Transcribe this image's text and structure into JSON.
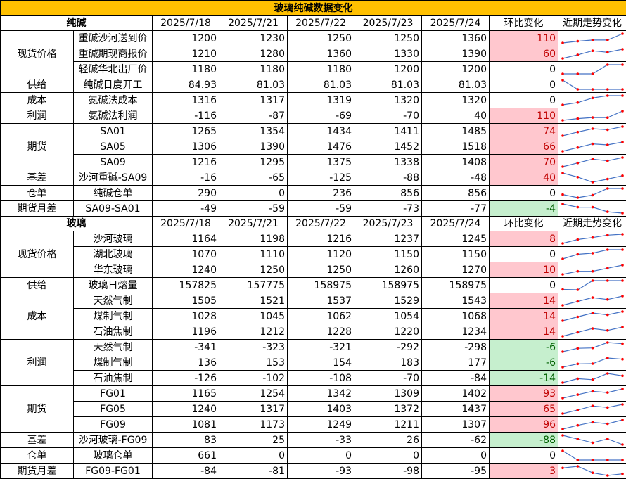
{
  "title": "玻璃纯碱数据变化",
  "colors": {
    "title_bg": "#ffc000",
    "pos_bg": "#ffc7ce",
    "pos_text": "#c00000",
    "neg_bg": "#c6efce",
    "neg_text": "#006100",
    "spark_line": "#4472c4",
    "spark_point": "#ff0000"
  },
  "sections": [
    {
      "name": "纯碱",
      "dates": [
        "2025/7/18",
        "2025/7/21",
        "2025/7/22",
        "2025/7/23",
        "2025/7/24"
      ],
      "change_label": "环比变化",
      "trend_label": "近期走势变化",
      "groups": [
        {
          "category": "现货价格",
          "rows": [
            {
              "item": "重碱沙河送到价",
              "values": [
                "1200",
                "1230",
                "1250",
                "1250",
                "1360"
              ],
              "change": "110"
            },
            {
              "item": "重碱期现商报价",
              "values": [
                "1210",
                "1280",
                "1360",
                "1330",
                "1390"
              ],
              "change": "60"
            },
            {
              "item": "轻碱华北出厂价",
              "values": [
                "1180",
                "1180",
                "1180",
                "1200",
                "1200"
              ],
              "change": "0"
            }
          ]
        },
        {
          "category": "供给",
          "rows": [
            {
              "item": "纯碱日度开工",
              "values": [
                "84.93",
                "81.03",
                "81.03",
                "81.03",
                "81.03"
              ],
              "change": "0"
            }
          ]
        },
        {
          "category": "成本",
          "rows": [
            {
              "item": "氨碱法成本",
              "values": [
                "1316",
                "1317",
                "1319",
                "1320",
                "1320"
              ],
              "change": "0"
            }
          ]
        },
        {
          "category": "利润",
          "rows": [
            {
              "item": "氨碱法利润",
              "values": [
                "-116",
                "-87",
                "-69",
                "-70",
                "40"
              ],
              "change": "110"
            }
          ]
        },
        {
          "category": "期货",
          "rows": [
            {
              "item": "SA01",
              "values": [
                "1265",
                "1354",
                "1434",
                "1411",
                "1485"
              ],
              "change": "74"
            },
            {
              "item": "SA05",
              "values": [
                "1306",
                "1390",
                "1476",
                "1452",
                "1518"
              ],
              "change": "66"
            },
            {
              "item": "SA09",
              "values": [
                "1216",
                "1295",
                "1375",
                "1338",
                "1408"
              ],
              "change": "70"
            }
          ]
        },
        {
          "category": "基差",
          "rows": [
            {
              "item": "沙河重碱-SA09",
              "values": [
                "-16",
                "-65",
                "-125",
                "-88",
                "-48"
              ],
              "change": "40"
            }
          ]
        },
        {
          "category": "仓单",
          "rows": [
            {
              "item": "纯碱仓单",
              "values": [
                "290",
                "0",
                "236",
                "856",
                "856"
              ],
              "change": "0"
            }
          ]
        },
        {
          "category": "期货月差",
          "rows": [
            {
              "item": "SA09-SA01",
              "values": [
                "-49",
                "-59",
                "-59",
                "-73",
                "-77"
              ],
              "change": "-4"
            }
          ]
        }
      ]
    },
    {
      "name": "玻璃",
      "dates": [
        "2025/7/18",
        "2025/7/21",
        "2025/7/22",
        "2025/7/23",
        "2025/7/24"
      ],
      "change_label": "环比变化",
      "trend_label": "近期走势变化",
      "groups": [
        {
          "category": "现货价格",
          "rows": [
            {
              "item": "沙河玻璃",
              "values": [
                "1164",
                "1198",
                "1216",
                "1237",
                "1245"
              ],
              "change": "8"
            },
            {
              "item": "湖北玻璃",
              "values": [
                "1070",
                "1110",
                "1120",
                "1150",
                "1150"
              ],
              "change": "0"
            },
            {
              "item": "华东玻璃",
              "values": [
                "1240",
                "1250",
                "1250",
                "1260",
                "1270"
              ],
              "change": "10"
            }
          ]
        },
        {
          "category": "供给",
          "rows": [
            {
              "item": "玻璃日熔量",
              "values": [
                "157825",
                "157775",
                "158975",
                "158975",
                "158975"
              ],
              "change": "0"
            }
          ]
        },
        {
          "category": "成本",
          "rows": [
            {
              "item": "天然气制",
              "values": [
                "1505",
                "1521",
                "1537",
                "1529",
                "1543"
              ],
              "change": "14"
            },
            {
              "item": "煤制气制",
              "values": [
                "1028",
                "1045",
                "1062",
                "1054",
                "1068"
              ],
              "change": "14"
            },
            {
              "item": "石油焦制",
              "values": [
                "1196",
                "1212",
                "1228",
                "1220",
                "1234"
              ],
              "change": "14"
            }
          ]
        },
        {
          "category": "利润",
          "rows": [
            {
              "item": "天然气制",
              "values": [
                "-341",
                "-323",
                "-321",
                "-292",
                "-298"
              ],
              "change": "-6"
            },
            {
              "item": "煤制气制",
              "values": [
                "136",
                "153",
                "154",
                "183",
                "177"
              ],
              "change": "-6"
            },
            {
              "item": "石油焦制",
              "values": [
                "-126",
                "-102",
                "-108",
                "-70",
                "-84"
              ],
              "change": "-14"
            }
          ]
        },
        {
          "category": "期货",
          "rows": [
            {
              "item": "FG01",
              "values": [
                "1165",
                "1254",
                "1342",
                "1309",
                "1402"
              ],
              "change": "93"
            },
            {
              "item": "FG05",
              "values": [
                "1240",
                "1317",
                "1403",
                "1372",
                "1437"
              ],
              "change": "65"
            },
            {
              "item": "FG09",
              "values": [
                "1081",
                "1173",
                "1249",
                "1211",
                "1307"
              ],
              "change": "96"
            }
          ]
        },
        {
          "category": "基差",
          "rows": [
            {
              "item": "沙河玻璃-FG09",
              "values": [
                "83",
                "25",
                "-33",
                "26",
                "-62"
              ],
              "change": "-88"
            }
          ]
        },
        {
          "category": "仓单",
          "rows": [
            {
              "item": "玻璃仓单",
              "values": [
                "661",
                "0",
                "0",
                "0",
                "0"
              ],
              "change": "0"
            }
          ]
        },
        {
          "category": "期货月差",
          "rows": [
            {
              "item": "FG09-FG01",
              "values": [
                "-84",
                "-81",
                "-93",
                "-98",
                "-95"
              ],
              "change": "3"
            }
          ]
        }
      ]
    }
  ]
}
